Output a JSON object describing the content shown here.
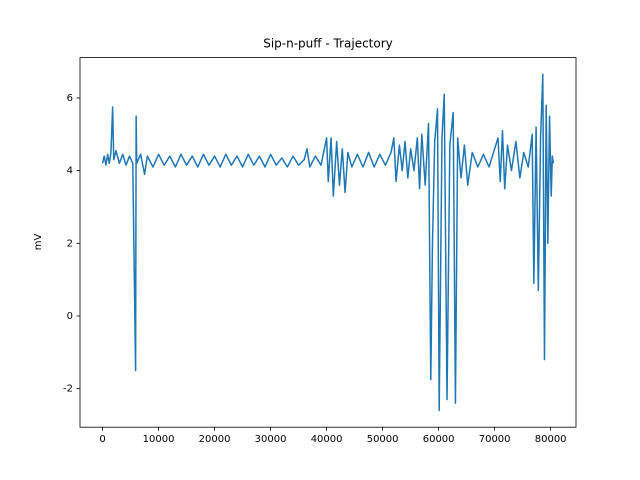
{
  "chart_data": {
    "type": "line",
    "title": "Sip-n-puff - Trajectory",
    "y_label": "mV",
    "x": [
      0,
      300,
      600,
      900,
      1200,
      1500,
      1800,
      2000,
      2400,
      3000,
      3600,
      4200,
      4800,
      5400,
      5900,
      6000,
      6100,
      6800,
      7500,
      8000,
      9000,
      10000,
      11000,
      12000,
      13000,
      14000,
      15000,
      16000,
      17000,
      18000,
      19000,
      20000,
      21000,
      22000,
      23000,
      24000,
      25000,
      26000,
      27000,
      28000,
      29000,
      30000,
      31000,
      32000,
      33000,
      34000,
      35000,
      36000,
      36500,
      37000,
      38000,
      39000,
      40000,
      40300,
      40800,
      41200,
      41800,
      42300,
      42800,
      43300,
      43800,
      44500,
      45500,
      46500,
      47500,
      48500,
      49500,
      50500,
      51500,
      52000,
      52400,
      53000,
      53500,
      54000,
      54500,
      55000,
      55600,
      56200,
      56600,
      57000,
      57600,
      58200,
      58600,
      58900,
      59300,
      59800,
      60100,
      60600,
      61000,
      61500,
      62000,
      62600,
      63000,
      63400,
      64000,
      64600,
      65200,
      66000,
      67000,
      68000,
      69000,
      70000,
      70600,
      71000,
      71400,
      71800,
      72300,
      73000,
      73800,
      74500,
      75200,
      76000,
      76700,
      77000,
      77400,
      77800,
      78200,
      78600,
      78900,
      79200,
      79500,
      79800,
      80100,
      80300,
      80500
    ],
    "series": [
      {
        "color": "#1f77b4",
        "values": [
          4.2,
          4.4,
          4.15,
          4.45,
          4.2,
          4.5,
          5.75,
          4.3,
          4.55,
          4.2,
          4.45,
          4.15,
          4.4,
          4.2,
          -1.5,
          5.5,
          4.2,
          4.45,
          3.9,
          4.4,
          4.1,
          4.45,
          4.15,
          4.4,
          4.1,
          4.45,
          4.15,
          4.4,
          4.1,
          4.45,
          4.15,
          4.4,
          4.1,
          4.45,
          4.15,
          4.4,
          4.1,
          4.45,
          4.15,
          4.4,
          4.1,
          4.45,
          4.15,
          4.35,
          4.1,
          4.4,
          4.15,
          4.3,
          4.6,
          4.1,
          4.4,
          4.15,
          4.9,
          3.7,
          4.9,
          3.3,
          4.8,
          3.6,
          4.6,
          3.4,
          4.5,
          4.1,
          4.45,
          4.1,
          4.5,
          4.1,
          4.45,
          4.15,
          4.5,
          4.9,
          3.7,
          4.7,
          4.0,
          4.8,
          3.8,
          4.6,
          4.0,
          4.9,
          3.5,
          5.0,
          3.6,
          5.3,
          -1.75,
          2.0,
          4.8,
          5.7,
          -2.6,
          4.9,
          6.1,
          -2.3,
          4.7,
          5.6,
          -2.4,
          4.9,
          3.8,
          4.7,
          3.6,
          4.5,
          4.1,
          4.45,
          4.1,
          4.6,
          4.9,
          3.7,
          5.1,
          3.5,
          4.7,
          4.0,
          4.8,
          3.8,
          4.5,
          4.1,
          5.0,
          0.9,
          5.2,
          0.7,
          4.9,
          6.65,
          -1.2,
          5.8,
          2.0,
          5.5,
          3.3,
          4.4,
          4.2
        ]
      }
    ],
    "xlim": [
      -4025,
      84525
    ],
    "ylim": [
      -3.06,
      7.11
    ],
    "xticks": [
      0,
      10000,
      20000,
      30000,
      40000,
      50000,
      60000,
      70000,
      80000
    ],
    "yticks": [
      -2,
      0,
      2,
      4,
      6
    ],
    "grid": false
  }
}
